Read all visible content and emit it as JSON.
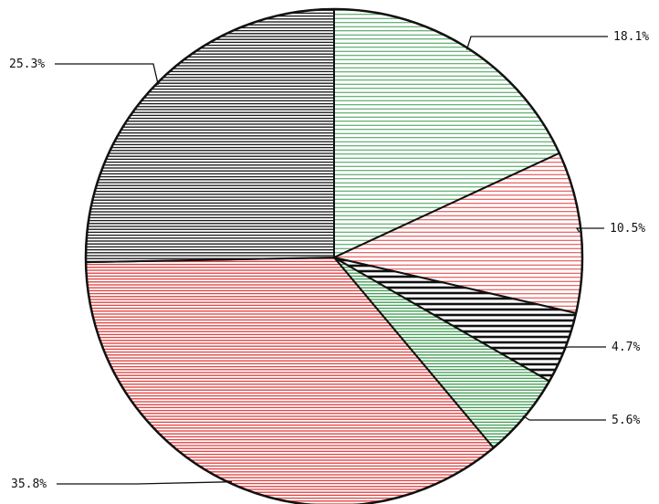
{
  "chart_data": {
    "type": "pie",
    "start_angle_deg": 0,
    "direction": "clockwise",
    "slices": [
      {
        "label": "18.1%",
        "value": 18.1,
        "color": "#3a9a4c",
        "fill": "hatch-fine",
        "label_side": "right"
      },
      {
        "label": "10.5%",
        "value": 10.5,
        "color": "#e03b3b",
        "fill": "hatch-fine",
        "label_side": "right"
      },
      {
        "label": "4.7%",
        "value": 4.7,
        "color": "#111111",
        "fill": "hatch-bold",
        "label_side": "right"
      },
      {
        "label": "5.6%",
        "value": 5.6,
        "color": "#3a9a4c",
        "fill": "hatch-dense",
        "label_side": "right"
      },
      {
        "label": "35.8%",
        "value": 35.8,
        "color": "#e03b3b",
        "fill": "hatch-dense",
        "label_side": "left"
      },
      {
        "label": "25.3%",
        "value": 25.3,
        "color": "#111111",
        "fill": "hatch-dense",
        "label_side": "left"
      }
    ],
    "title": "",
    "legend": "none"
  }
}
